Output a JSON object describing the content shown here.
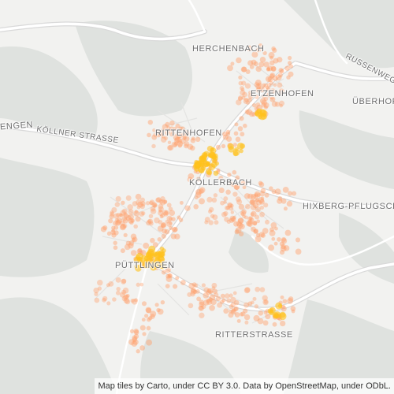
{
  "map": {
    "labels": {
      "herchenbach": "HERCHENBACH",
      "etzenhofen": "ETZENHOFEN",
      "ueberhofen": "ÜBERHOF",
      "russenweg": "RUSSENWEG",
      "engen": "ENGEN",
      "koellner_strasse": "KÖLLNER STRASSE",
      "rittenhofen": "RITTENHOFEN",
      "koellerbach": "KÖLLERBACH",
      "hixberg": "HIXBERG-PFLUGSCH",
      "puettlingen": "PÜTTLINGEN",
      "ritterstrasse": "RITTERSTRASSE"
    },
    "attribution": "Map tiles by Carto, under CC BY 3.0. Data by OpenStreetMap, under ODbL.",
    "colors": {
      "background": "#f2f2f0",
      "woodland": "#dfe2df",
      "road_major": "#ffffff",
      "road_casing": "#d6d6d6",
      "heat_low": "#ff9f6b",
      "heat_high": "#ffc21a"
    }
  }
}
